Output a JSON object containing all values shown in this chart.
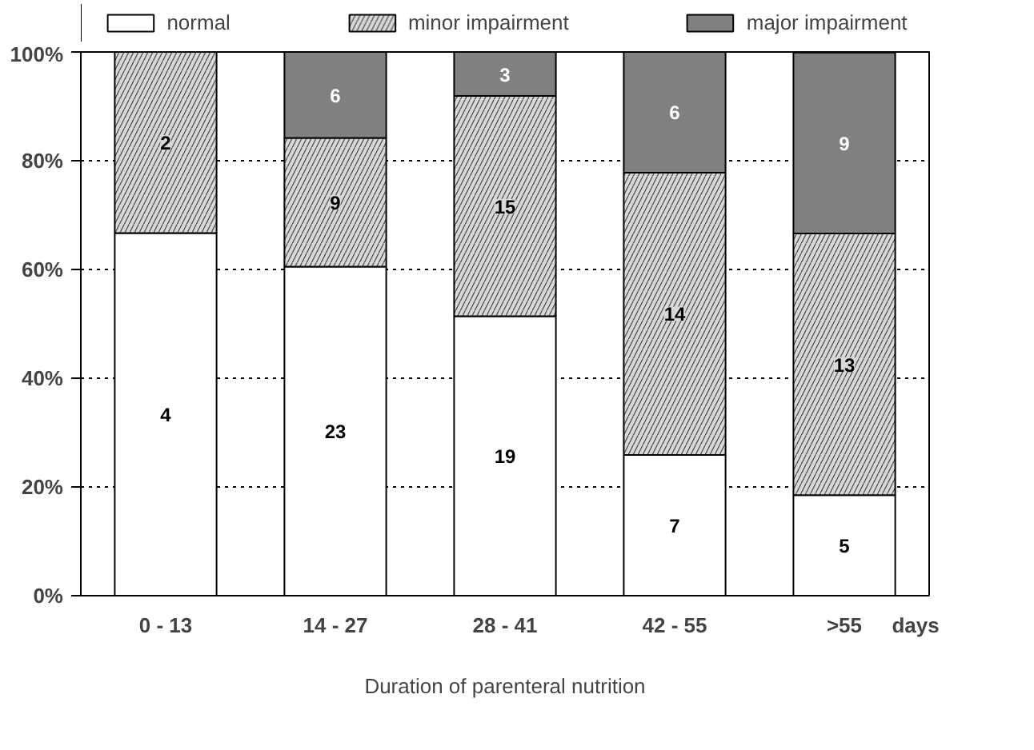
{
  "chart_data": {
    "type": "bar",
    "stacked": true,
    "xlabel": "Duration of parenteral nutrition",
    "categories": [
      "0 - 13",
      "14 - 27",
      "28 - 41",
      "42 - 55",
      ">55"
    ],
    "series": [
      {
        "name": "normal",
        "color": "#ffffff",
        "values": [
          66.7,
          60.5,
          51.4,
          25.9,
          18.5
        ]
      },
      {
        "name": "minor impairment",
        "color": "#d9d9d9",
        "values": [
          33.3,
          23.7,
          40.5,
          51.9,
          48.1
        ]
      },
      {
        "name": "major impairment",
        "color": "#808080",
        "values": [
          null,
          15.8,
          8.1,
          22.2,
          33.3
        ]
      }
    ],
    "ylim": [
      0,
      100
    ],
    "yticks": [
      {
        "value": 0,
        "label": "0%"
      },
      {
        "value": 20,
        "label": "20%"
      },
      {
        "value": 40,
        "label": "40%"
      },
      {
        "value": 60,
        "label": "60%"
      },
      {
        "value": 80,
        "label": "80%"
      },
      {
        "value": 100,
        "label": "100%"
      }
    ],
    "grid": "y",
    "line_style": "dotted",
    "legend": "top",
    "annotations": [
      "4",
      "2",
      "23",
      "9",
      "6",
      "19",
      "15",
      "3",
      "7",
      "14",
      "6",
      "5",
      "13",
      "9",
      "days"
    ]
  }
}
